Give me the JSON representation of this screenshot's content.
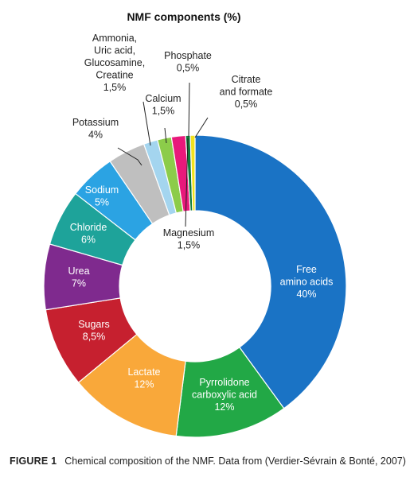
{
  "chart_data": {
    "type": "pie",
    "title": "NMF components (%)",
    "categories": [
      "Free amino acids",
      "Pyrrolidone carboxylic acid",
      "Lactate",
      "Sugars",
      "Urea",
      "Chloride",
      "Sodium",
      "Potassium",
      "Ammonia, Uric acid, Glucosamine, Creatine",
      "Calcium",
      "Magnesium",
      "Phosphate",
      "Citrate and formate"
    ],
    "values": [
      40,
      12,
      12,
      8.5,
      7,
      6,
      5,
      4,
      1.5,
      1.5,
      1.5,
      0.5,
      0.5
    ],
    "value_labels": [
      "40%",
      "12%",
      "12%",
      "8,5%",
      "7%",
      "6%",
      "5%",
      "4%",
      "1,5%",
      "1,5%",
      "1,5%",
      "0,5%",
      "0,5%"
    ],
    "label_lines": [
      [
        "Free",
        "amino acids"
      ],
      [
        "Pyrrolidone",
        "carboxylic acid"
      ],
      [
        "Lactate"
      ],
      [
        "Sugars"
      ],
      [
        "Urea"
      ],
      [
        "Chloride"
      ],
      [
        "Sodium"
      ],
      [
        "Potassium"
      ],
      [
        "Ammonia,",
        "Uric acid,",
        "Glucosamine,",
        "Creatine"
      ],
      [
        "Calcium"
      ],
      [
        "Magnesium"
      ],
      [
        "Phosphate"
      ],
      [
        "Citrate",
        "and formate"
      ]
    ],
    "colors": [
      "#1a73c5",
      "#22a846",
      "#f9a83a",
      "#c6202f",
      "#7f2a8e",
      "#1ea39a",
      "#2ba3e3",
      "#bfbfbf",
      "#a4d5ef",
      "#8ccc4a",
      "#e8197b",
      "#0e7a39",
      "#f2e21d"
    ],
    "style": "donut",
    "start_angle_deg": 0,
    "direction": "clockwise"
  },
  "caption": {
    "figure_label": "FIGURE 1",
    "text": "Chemical composition of the NMF. Data from (Verdier-Sévrain & Bonté, 2007)"
  }
}
